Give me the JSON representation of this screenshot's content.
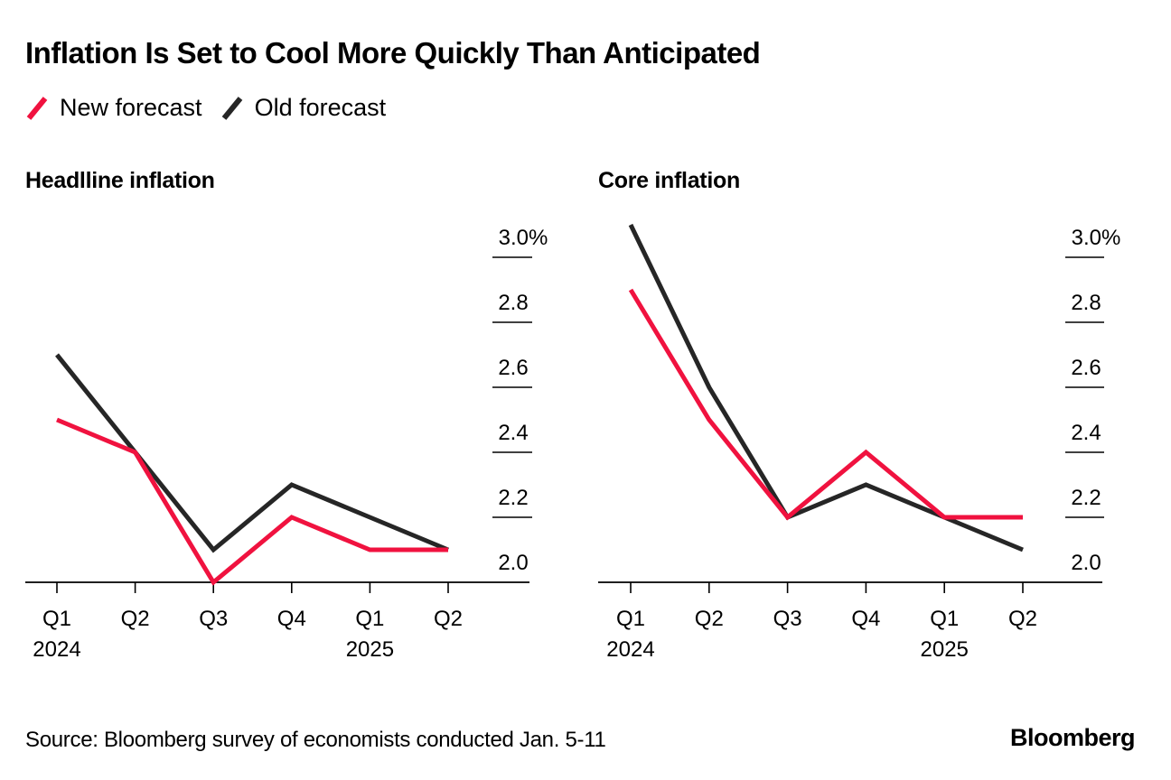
{
  "title": "Inflation Is Set to Cool More Quickly Than Anticipated",
  "legend": [
    {
      "label": "New forecast",
      "color": "#F0123F",
      "icon": "slash-line-icon"
    },
    {
      "label": "Old forecast",
      "color": "#262626",
      "icon": "slash-line-icon"
    }
  ],
  "source": "Source: Bloomberg survey of economists conducted Jan. 5-11",
  "brand": "Bloomberg",
  "chart_data": [
    {
      "type": "line",
      "title": "Headlline inflation",
      "categories": [
        "Q1",
        "Q2",
        "Q3",
        "Q4",
        "Q1",
        "Q2"
      ],
      "year_labels": [
        "2024",
        "",
        "",
        "",
        "2025",
        ""
      ],
      "xlabel": "",
      "ylabel": "",
      "ylim": [
        2.0,
        3.0
      ],
      "yticks": [
        2.0,
        2.2,
        2.4,
        2.6,
        2.8,
        3.0
      ],
      "ytick_labels": [
        "2.0",
        "2.2",
        "2.4",
        "2.6",
        "2.8",
        "3.0%"
      ],
      "y_axis_position": "right",
      "grid": false,
      "series": [
        {
          "name": "New forecast",
          "color": "#F0123F",
          "values": [
            2.5,
            2.4,
            2.0,
            2.2,
            2.1,
            2.1
          ]
        },
        {
          "name": "Old forecast",
          "color": "#262626",
          "values": [
            2.7,
            2.4,
            2.1,
            2.3,
            2.2,
            2.1
          ]
        }
      ]
    },
    {
      "type": "line",
      "title": "Core inflation",
      "categories": [
        "Q1",
        "Q2",
        "Q3",
        "Q4",
        "Q1",
        "Q2"
      ],
      "year_labels": [
        "2024",
        "",
        "",
        "",
        "2025",
        ""
      ],
      "xlabel": "",
      "ylabel": "",
      "ylim": [
        2.0,
        3.0
      ],
      "yticks": [
        2.0,
        2.2,
        2.4,
        2.6,
        2.8,
        3.0
      ],
      "ytick_labels": [
        "2.0",
        "2.2",
        "2.4",
        "2.6",
        "2.8",
        "3.0%"
      ],
      "y_axis_position": "right",
      "grid": false,
      "series": [
        {
          "name": "New forecast",
          "color": "#F0123F",
          "values": [
            2.9,
            2.5,
            2.2,
            2.4,
            2.2,
            2.2
          ]
        },
        {
          "name": "Old forecast",
          "color": "#262626",
          "values": [
            3.1,
            2.6,
            2.2,
            2.3,
            2.2,
            2.1
          ]
        }
      ]
    }
  ]
}
